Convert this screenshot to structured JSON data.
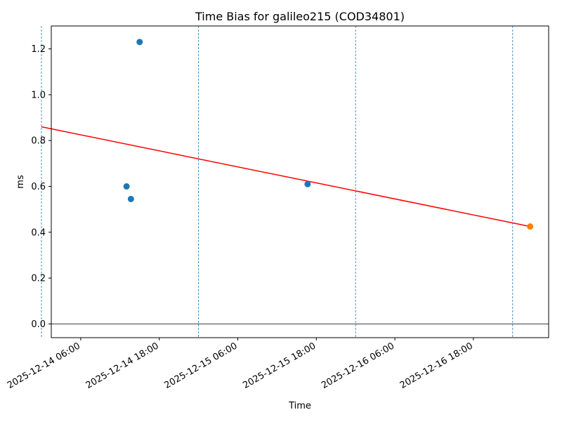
{
  "chart_data": {
    "type": "scatter",
    "title": "Time Bias for galileo215 (COD34801)",
    "xlabel": "Time",
    "ylabel": "ms",
    "xlim": [
      "2025-12-14 01:30",
      "2025-12-17 05:30"
    ],
    "ylim": [
      -0.06,
      1.3
    ],
    "x_ticks": [
      "2025-12-14 06:00",
      "2025-12-14 18:00",
      "2025-12-15 06:00",
      "2025-12-15 18:00",
      "2025-12-16 06:00",
      "2025-12-16 18:00"
    ],
    "y_ticks": [
      "0.0",
      "0.2",
      "0.4",
      "0.6",
      "0.8",
      "1.0",
      "1.2"
    ],
    "vlines": [
      "2025-12-14 00:00",
      "2025-12-15 00:00",
      "2025-12-16 00:00",
      "2025-12-17 00:00"
    ],
    "vline_color": "#1f77b4",
    "zero_line_color": "#000000",
    "series": [
      {
        "color": "#1f77b4",
        "points": [
          {
            "x": "2025-12-14 13:00",
            "y": 0.6
          },
          {
            "x": "2025-12-14 13:40",
            "y": 0.545
          },
          {
            "x": "2025-12-14 15:00",
            "y": 1.23
          },
          {
            "x": "2025-12-15 16:40",
            "y": 0.61
          }
        ]
      },
      {
        "color": "#ff7f0e",
        "points": [
          {
            "x": "2025-12-17 02:40",
            "y": 0.425
          }
        ]
      }
    ],
    "trend": {
      "color": "#ff0000",
      "points": [
        {
          "x": "2025-12-14 00:00",
          "y": 0.86
        },
        {
          "x": "2025-12-17 02:40",
          "y": 0.425
        }
      ]
    }
  }
}
